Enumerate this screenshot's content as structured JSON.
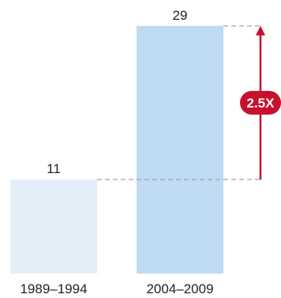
{
  "chart_data": {
    "type": "bar",
    "categories": [
      "1989–1994",
      "2004–2009"
    ],
    "values": [
      11,
      29
    ],
    "value_labels": [
      "11",
      "29"
    ],
    "ylim": [
      0,
      30
    ],
    "grid": false,
    "annotation": {
      "label": "2.5X",
      "from_category": "1989–1994",
      "to_category": "2004–2009"
    },
    "colors": {
      "bars": [
        "#e3eef9",
        "#bfdaf3"
      ],
      "guide_line": "#aaaaaa",
      "arrow": "#c8102e",
      "badge": "#c8102e"
    }
  }
}
